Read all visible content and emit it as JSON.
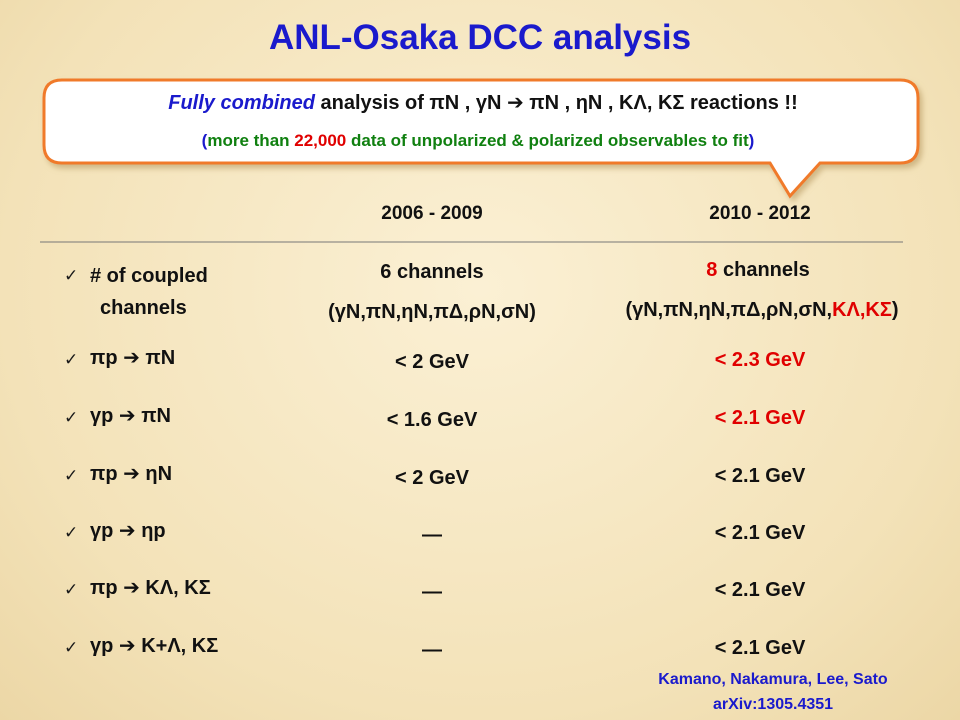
{
  "title": "ANL-Osaka DCC analysis",
  "callout": {
    "line1": [
      "Fully combined",
      " analysis of πN , γN ➔ πN , ηN , KΛ, KΣ reactions !!"
    ],
    "line2": [
      "(",
      "more than ",
      "22,000",
      " data of unpolarized & polarized observables to fit",
      ")"
    ]
  },
  "table": {
    "columns": [
      "2006 - 2009",
      "2010 - 2012"
    ],
    "rows": [
      {
        "label": [
          "# of coupled",
          "channels"
        ],
        "old": {
          "count": "6 channels",
          "list": "(γN,πN,ηN,πΔ,ρN,σN)"
        },
        "new": {
          "count": [
            "8",
            " channels"
          ],
          "list": [
            "(γN,πN,ηN,πΔ,ρN,σN,",
            "KΛ,KΣ",
            ")"
          ]
        }
      },
      {
        "label": "πp ➔ πN",
        "old": "< 2 GeV",
        "new": "< 2.3 GeV"
      },
      {
        "label": "γp ➔ πN",
        "old": "< 1.6 GeV",
        "new": "< 2.1 GeV"
      },
      {
        "label": "πp ➔ ηN",
        "old": "< 2 GeV",
        "new": "< 2.1 GeV"
      },
      {
        "label": "γp ➔ ηp",
        "old": "—",
        "new": "< 2.1 GeV"
      },
      {
        "label": "πp ➔ KΛ, KΣ",
        "old": "—",
        "new": "< 2.1 GeV"
      },
      {
        "label": "γp ➔ K+Λ, KΣ",
        "old": "—",
        "new": "< 2.1 GeV"
      }
    ]
  },
  "footer": {
    "authors": "Kamano, Nakamura, Lee, Sato",
    "reference": "arXiv:1305.4351"
  }
}
